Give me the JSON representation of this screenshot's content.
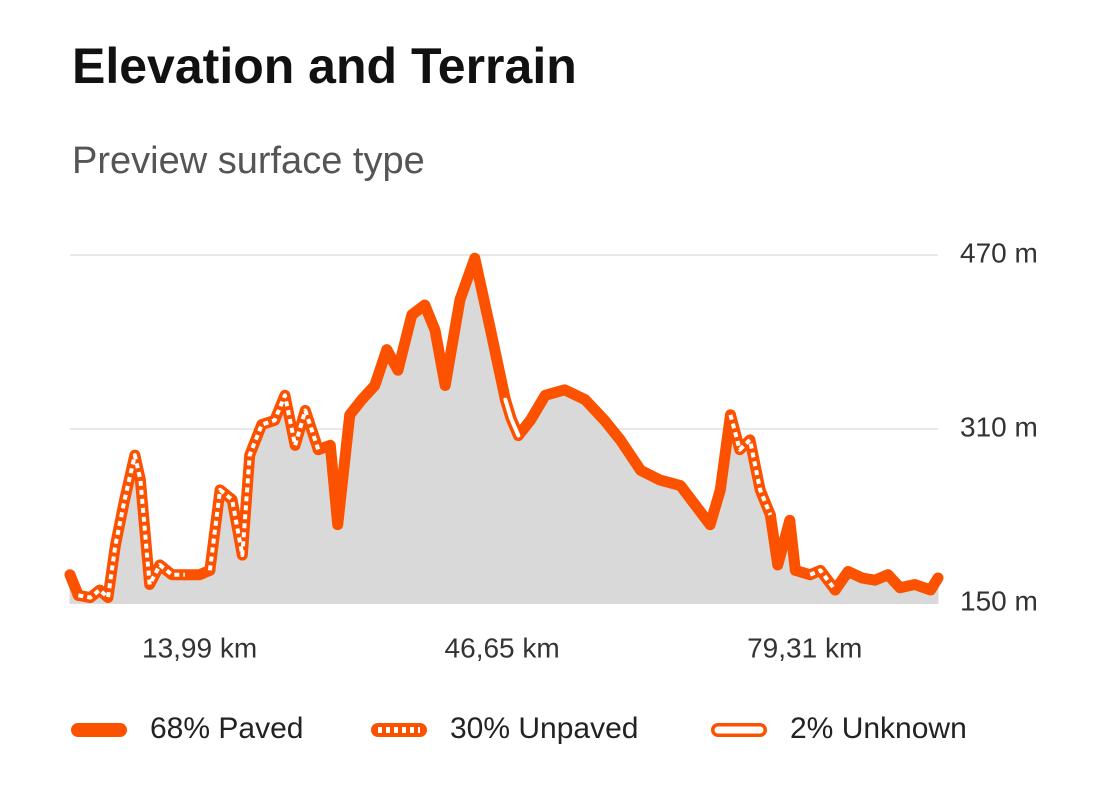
{
  "chart_data": {
    "type": "line",
    "title": "Elevation and Terrain",
    "subtitle": "Preview surface type",
    "x": [
      0.0,
      0.9,
      2.2,
      3.2,
      4.1,
      4.9,
      5.9,
      7.0,
      7.6,
      8.6,
      9.7,
      11.0,
      12.4,
      14.0,
      15.1,
      16.2,
      17.5,
      18.6,
      19.4,
      20.7,
      22.1,
      23.2,
      24.3,
      25.4,
      26.8,
      28.1,
      28.9,
      30.2,
      31.5,
      32.9,
      34.2,
      35.4,
      36.9,
      38.3,
      39.4,
      40.5,
      42.1,
      43.7,
      45.4,
      47.0,
      47.6,
      48.4,
      49.7,
      51.3,
      53.4,
      55.6,
      57.7,
      59.4,
      61.6,
      63.7,
      65.9,
      67.5,
      69.1,
      70.2,
      71.3,
      72.3,
      73.4,
      74.5,
      75.6,
      76.4,
      77.7,
      78.3,
      79.9,
      81.0,
      82.6,
      84.0,
      85.5,
      86.9,
      88.3,
      89.6,
      91.2,
      92.9,
      93.7
    ],
    "series": [
      {
        "name": "68% Paved",
        "color": "#fc5200",
        "style": "solid",
        "values": [
          176,
          157,
          null,
          null,
          null,
          null,
          null,
          null,
          null,
          null,
          null,
          null,
          176,
          176,
          180,
          null,
          null,
          null,
          null,
          null,
          null,
          null,
          null,
          null,
          291,
          295,
          222,
          323,
          337,
          350,
          383,
          364,
          415,
          424,
          401,
          350,
          429,
          467,
          401,
          337,
          null,
          304,
          318,
          341,
          346,
          337,
          318,
          300,
          272,
          263,
          258,
          240,
          222,
          254,
          323,
          null,
          null,
          null,
          231,
          185,
          226,
          180,
          176,
          null,
          162,
          179,
          173,
          171,
          176,
          164,
          167,
          162,
          173
        ]
      },
      {
        "name": "30% Unpaved",
        "color": "#fc5200",
        "style": "dashed",
        "values": [
          null,
          157,
          155,
          162,
          155,
          203,
          245,
          286,
          263,
          167,
          185,
          176,
          176,
          null,
          180,
          254,
          245,
          194,
          286,
          314,
          318,
          341,
          295,
          327,
          291,
          null,
          null,
          null,
          null,
          null,
          null,
          null,
          null,
          null,
          null,
          null,
          null,
          null,
          null,
          null,
          null,
          null,
          null,
          null,
          null,
          null,
          null,
          null,
          null,
          null,
          null,
          null,
          null,
          null,
          323,
          291,
          300,
          254,
          231,
          null,
          null,
          null,
          176,
          180,
          162,
          null,
          null,
          null,
          null,
          null,
          null,
          null,
          null
        ]
      },
      {
        "name": "2% Unknown",
        "color": "#fc5200",
        "style": "hollow",
        "values": [
          null,
          null,
          null,
          null,
          null,
          null,
          null,
          null,
          null,
          null,
          null,
          null,
          null,
          null,
          null,
          null,
          null,
          null,
          null,
          null,
          null,
          null,
          null,
          null,
          null,
          null,
          null,
          null,
          null,
          null,
          null,
          null,
          null,
          null,
          null,
          null,
          null,
          null,
          null,
          337,
          320,
          304,
          null,
          null,
          null,
          null,
          null,
          null,
          null,
          null,
          null,
          null,
          null,
          null,
          null,
          null,
          null,
          null,
          null,
          null,
          null,
          null,
          null,
          null,
          null,
          null,
          null,
          null,
          null,
          null,
          null,
          null,
          null
        ]
      }
    ],
    "area_color": "#d9d9d9",
    "xlim": [
      0,
      93.7
    ],
    "ylim": [
      150,
      470
    ],
    "yticks": [
      {
        "value": 150,
        "label": "150 m"
      },
      {
        "value": 310,
        "label": "310 m"
      },
      {
        "value": 470,
        "label": "470 m"
      }
    ],
    "xticks": [
      {
        "value": 13.99,
        "label": "13,99 km"
      },
      {
        "value": 46.65,
        "label": "46,65 km"
      },
      {
        "value": 79.31,
        "label": "79,31 km"
      }
    ],
    "grid": true
  }
}
